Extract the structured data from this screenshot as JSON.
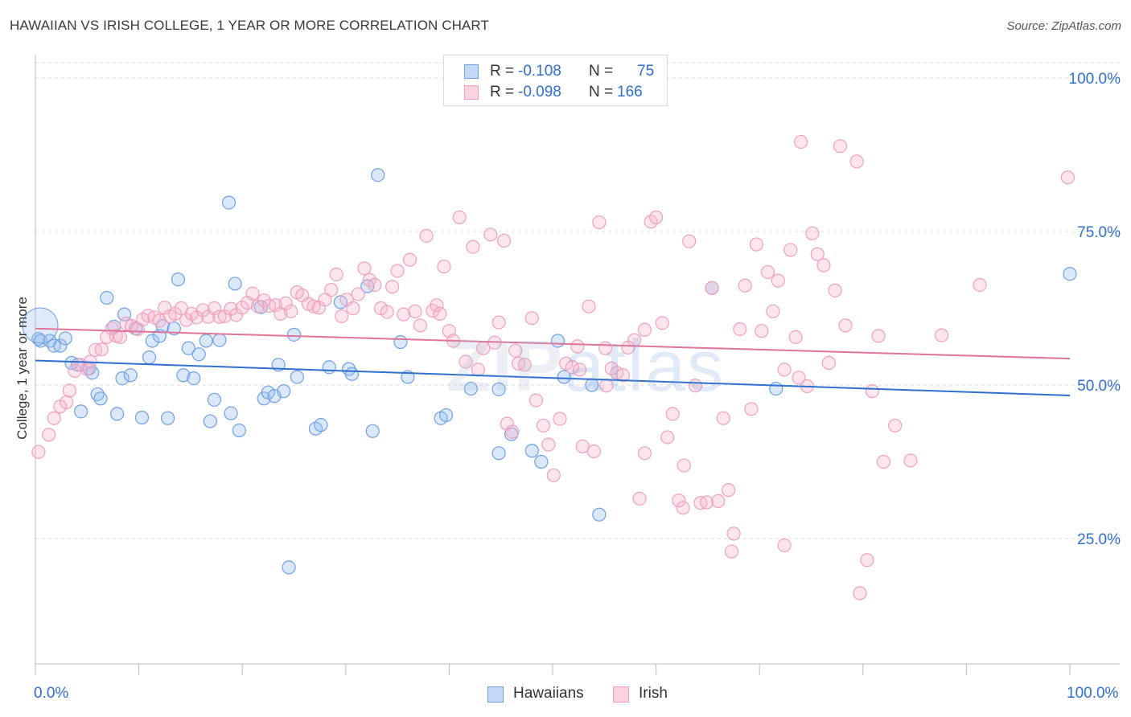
{
  "title": "HAWAIIAN VS IRISH COLLEGE, 1 YEAR OR MORE CORRELATION CHART",
  "source": "Source: ZipAtlas.com",
  "watermark": {
    "part1": "ZIP",
    "part2": "atlas"
  },
  "legend_top": [
    {
      "r_label": "R =",
      "r_value": "-0.108",
      "n_label": "N =",
      "n_value": "75",
      "color": "#6fa0e6"
    },
    {
      "r_label": "R =",
      "r_value": "-0.098",
      "n_label": "N =",
      "n_value": "166",
      "color": "#f0a0bc"
    }
  ],
  "legend_bottom": [
    {
      "label": "Hawaiians",
      "color": "#6fa0e6"
    },
    {
      "label": "Irish",
      "color": "#f0a0bc"
    }
  ],
  "chart_data": {
    "type": "scatter",
    "title": "HAWAIIAN VS IRISH COLLEGE, 1 YEAR OR MORE CORRELATION CHART",
    "xlabel": "",
    "ylabel": "College, 1 year or more",
    "xlim": [
      0,
      100
    ],
    "ylim": [
      0,
      105
    ],
    "x_tick_labels": [
      "0.0%",
      "100.0%"
    ],
    "y_ticks": [
      25,
      50,
      75,
      100
    ],
    "y_tick_labels": [
      "25.0%",
      "50.0%",
      "75.0%",
      "100.0%"
    ],
    "grid": "horizontal dashed",
    "legend": "top-center",
    "series": [
      {
        "name": "Hawaiians",
        "color": "#6fa0e6",
        "line_color": "#2f6fd0",
        "trend": {
          "x": [
            0,
            100
          ],
          "y": [
            54.0,
            48.3
          ]
        },
        "points": [
          [
            0.3,
            57.5
          ],
          [
            0.5,
            57.2
          ],
          [
            1.4,
            57.2
          ],
          [
            1.8,
            56.4
          ],
          [
            2.4,
            56.4
          ],
          [
            2.9,
            57.6
          ],
          [
            3.5,
            53.6
          ],
          [
            4.1,
            53.3
          ],
          [
            4.4,
            45.7
          ],
          [
            5.2,
            52.7
          ],
          [
            5.5,
            52.0
          ],
          [
            6.0,
            48.5
          ],
          [
            6.3,
            47.8
          ],
          [
            6.9,
            64.2
          ],
          [
            7.6,
            59.5
          ],
          [
            7.9,
            45.3
          ],
          [
            8.4,
            51.1
          ],
          [
            8.6,
            61.5
          ],
          [
            9.2,
            51.6
          ],
          [
            9.7,
            59.2
          ],
          [
            10.3,
            44.7
          ],
          [
            11.0,
            54.5
          ],
          [
            11.3,
            57.2
          ],
          [
            12.0,
            58.0
          ],
          [
            12.3,
            59.6
          ],
          [
            12.8,
            44.6
          ],
          [
            13.4,
            59.2
          ],
          [
            13.8,
            67.2
          ],
          [
            14.3,
            51.6
          ],
          [
            14.8,
            56.0
          ],
          [
            15.3,
            51.1
          ],
          [
            15.8,
            55.0
          ],
          [
            16.5,
            57.2
          ],
          [
            16.9,
            44.1
          ],
          [
            17.3,
            47.6
          ],
          [
            17.8,
            57.3
          ],
          [
            18.7,
            79.7
          ],
          [
            18.9,
            45.4
          ],
          [
            19.3,
            66.5
          ],
          [
            19.7,
            42.6
          ],
          [
            21.8,
            62.7
          ],
          [
            22.1,
            47.8
          ],
          [
            22.5,
            48.8
          ],
          [
            23.1,
            48.2
          ],
          [
            23.5,
            53.3
          ],
          [
            24.0,
            49.0
          ],
          [
            24.5,
            20.3
          ],
          [
            25.0,
            58.2
          ],
          [
            25.3,
            51.3
          ],
          [
            27.1,
            42.9
          ],
          [
            27.6,
            43.5
          ],
          [
            28.4,
            52.9
          ],
          [
            29.5,
            63.5
          ],
          [
            30.3,
            52.6
          ],
          [
            30.6,
            51.8
          ],
          [
            32.1,
            66.1
          ],
          [
            32.6,
            42.5
          ],
          [
            33.1,
            84.2
          ],
          [
            35.3,
            57.0
          ],
          [
            36.0,
            51.3
          ],
          [
            39.2,
            44.6
          ],
          [
            39.7,
            45.1
          ],
          [
            42.1,
            49.4
          ],
          [
            44.8,
            49.3
          ],
          [
            44.8,
            38.9
          ],
          [
            46.0,
            42.0
          ],
          [
            48.0,
            39.3
          ],
          [
            48.9,
            37.5
          ],
          [
            50.5,
            57.2
          ],
          [
            51.1,
            51.3
          ],
          [
            53.8,
            50.0
          ],
          [
            54.5,
            28.9
          ],
          [
            65.4,
            65.8
          ],
          [
            71.6,
            49.4
          ],
          [
            100.0,
            68.1
          ]
        ]
      },
      {
        "name": "Irish",
        "color": "#f0a0bc",
        "line_color": "#e0739a",
        "trend": {
          "x": [
            0,
            100
          ],
          "y": [
            59.2,
            54.3
          ]
        },
        "points": [
          [
            0.3,
            39.1
          ],
          [
            1.3,
            41.9
          ],
          [
            1.8,
            44.6
          ],
          [
            2.4,
            46.5
          ],
          [
            3.0,
            47.2
          ],
          [
            3.3,
            49.1
          ],
          [
            3.8,
            52.3
          ],
          [
            4.4,
            53.3
          ],
          [
            5.0,
            52.6
          ],
          [
            5.3,
            53.8
          ],
          [
            5.8,
            55.7
          ],
          [
            6.4,
            55.8
          ],
          [
            6.9,
            57.8
          ],
          [
            7.4,
            59.2
          ],
          [
            7.8,
            58.0
          ],
          [
            8.2,
            57.8
          ],
          [
            8.8,
            60.0
          ],
          [
            9.3,
            59.6
          ],
          [
            9.9,
            59.1
          ],
          [
            10.4,
            60.7
          ],
          [
            10.9,
            61.3
          ],
          [
            11.5,
            61.0
          ],
          [
            12.0,
            60.5
          ],
          [
            12.5,
            62.6
          ],
          [
            13.0,
            61.2
          ],
          [
            13.5,
            61.6
          ],
          [
            14.1,
            62.5
          ],
          [
            14.6,
            60.6
          ],
          [
            15.1,
            61.6
          ],
          [
            15.6,
            61.0
          ],
          [
            16.2,
            62.2
          ],
          [
            16.7,
            61.1
          ],
          [
            17.3,
            62.5
          ],
          [
            17.8,
            61.1
          ],
          [
            18.3,
            61.2
          ],
          [
            18.9,
            62.4
          ],
          [
            19.4,
            61.4
          ],
          [
            20.0,
            62.6
          ],
          [
            20.5,
            63.4
          ],
          [
            21.0,
            64.9
          ],
          [
            21.5,
            62.8
          ],
          [
            22.1,
            63.8
          ],
          [
            22.6,
            62.9
          ],
          [
            23.2,
            63.0
          ],
          [
            23.7,
            61.6
          ],
          [
            24.2,
            63.3
          ],
          [
            24.7,
            62.0
          ],
          [
            25.3,
            65.1
          ],
          [
            25.8,
            64.6
          ],
          [
            26.4,
            63.2
          ],
          [
            26.9,
            62.8
          ],
          [
            27.4,
            62.6
          ],
          [
            28.0,
            63.9
          ],
          [
            28.6,
            65.5
          ],
          [
            29.1,
            68.0
          ],
          [
            29.6,
            61.2
          ],
          [
            30.1,
            63.9
          ],
          [
            30.7,
            62.5
          ],
          [
            31.2,
            64.8
          ],
          [
            31.8,
            69.0
          ],
          [
            32.3,
            67.1
          ],
          [
            32.8,
            66.3
          ],
          [
            33.4,
            62.5
          ],
          [
            34.0,
            61.9
          ],
          [
            34.5,
            66.0
          ],
          [
            35.0,
            68.6
          ],
          [
            35.6,
            61.5
          ],
          [
            36.2,
            70.4
          ],
          [
            36.7,
            62.0
          ],
          [
            37.2,
            59.7
          ],
          [
            37.8,
            74.3
          ],
          [
            38.4,
            62.1
          ],
          [
            38.8,
            63.0
          ],
          [
            39.5,
            69.3
          ],
          [
            40.0,
            58.8
          ],
          [
            40.4,
            57.2
          ],
          [
            41.0,
            77.3
          ],
          [
            41.6,
            53.8
          ],
          [
            42.3,
            72.5
          ],
          [
            42.8,
            52.5
          ],
          [
            43.3,
            56.0
          ],
          [
            44.0,
            74.5
          ],
          [
            44.8,
            60.2
          ],
          [
            45.6,
            43.7
          ],
          [
            46.1,
            42.4
          ],
          [
            46.7,
            53.5
          ],
          [
            47.3,
            53.3
          ],
          [
            48.0,
            60.9
          ],
          [
            48.4,
            47.5
          ],
          [
            49.1,
            43.4
          ],
          [
            49.6,
            40.3
          ],
          [
            50.1,
            35.3
          ],
          [
            50.7,
            44.5
          ],
          [
            51.3,
            53.5
          ],
          [
            51.9,
            52.9
          ],
          [
            52.4,
            56.3
          ],
          [
            52.9,
            40.0
          ],
          [
            53.5,
            62.8
          ],
          [
            54.0,
            39.2
          ],
          [
            54.5,
            76.5
          ],
          [
            55.1,
            56.0
          ],
          [
            55.7,
            52.7
          ],
          [
            56.2,
            52.0
          ],
          [
            56.8,
            51.6
          ],
          [
            57.3,
            56.1
          ],
          [
            57.9,
            57.3
          ],
          [
            58.4,
            31.5
          ],
          [
            58.9,
            59.0
          ],
          [
            59.5,
            76.6
          ],
          [
            60.0,
            77.3
          ],
          [
            60.6,
            60.1
          ],
          [
            61.1,
            41.5
          ],
          [
            61.6,
            45.3
          ],
          [
            62.2,
            31.2
          ],
          [
            62.7,
            36.9
          ],
          [
            63.2,
            73.4
          ],
          [
            63.8,
            49.9
          ],
          [
            64.3,
            30.8
          ],
          [
            64.9,
            30.9
          ],
          [
            65.4,
            65.8
          ],
          [
            66.0,
            31.1
          ],
          [
            66.5,
            44.6
          ],
          [
            67.0,
            32.9
          ],
          [
            67.5,
            25.8
          ],
          [
            68.1,
            59.1
          ],
          [
            68.6,
            66.2
          ],
          [
            69.2,
            46.1
          ],
          [
            69.7,
            72.9
          ],
          [
            70.2,
            58.8
          ],
          [
            70.8,
            68.4
          ],
          [
            71.3,
            62.0
          ],
          [
            71.8,
            67.0
          ],
          [
            72.4,
            23.9
          ],
          [
            73.0,
            72.0
          ],
          [
            73.5,
            57.8
          ],
          [
            74.0,
            89.6
          ],
          [
            74.6,
            49.8
          ],
          [
            75.1,
            74.7
          ],
          [
            75.6,
            71.3
          ],
          [
            76.2,
            69.5
          ],
          [
            76.7,
            53.6
          ],
          [
            77.3,
            65.4
          ],
          [
            77.8,
            88.9
          ],
          [
            78.3,
            59.7
          ],
          [
            79.4,
            86.4
          ],
          [
            80.4,
            21.5
          ],
          [
            80.9,
            49.0
          ],
          [
            81.5,
            58.0
          ],
          [
            82.0,
            37.5
          ],
          [
            83.1,
            43.4
          ],
          [
            84.6,
            37.7
          ],
          [
            87.6,
            58.1
          ],
          [
            91.3,
            66.3
          ],
          [
            99.8,
            83.8
          ],
          [
            45.3,
            73.5
          ],
          [
            52.6,
            52.5
          ],
          [
            58.9,
            38.9
          ],
          [
            62.6,
            30.0
          ],
          [
            79.7,
            16.1
          ],
          [
            72.4,
            52.5
          ],
          [
            67.3,
            22.9
          ],
          [
            55.2,
            49.9
          ],
          [
            73.8,
            51.2
          ],
          [
            39.1,
            61.6
          ],
          [
            46.4,
            55.6
          ],
          [
            44.4,
            56.9
          ]
        ]
      }
    ]
  }
}
